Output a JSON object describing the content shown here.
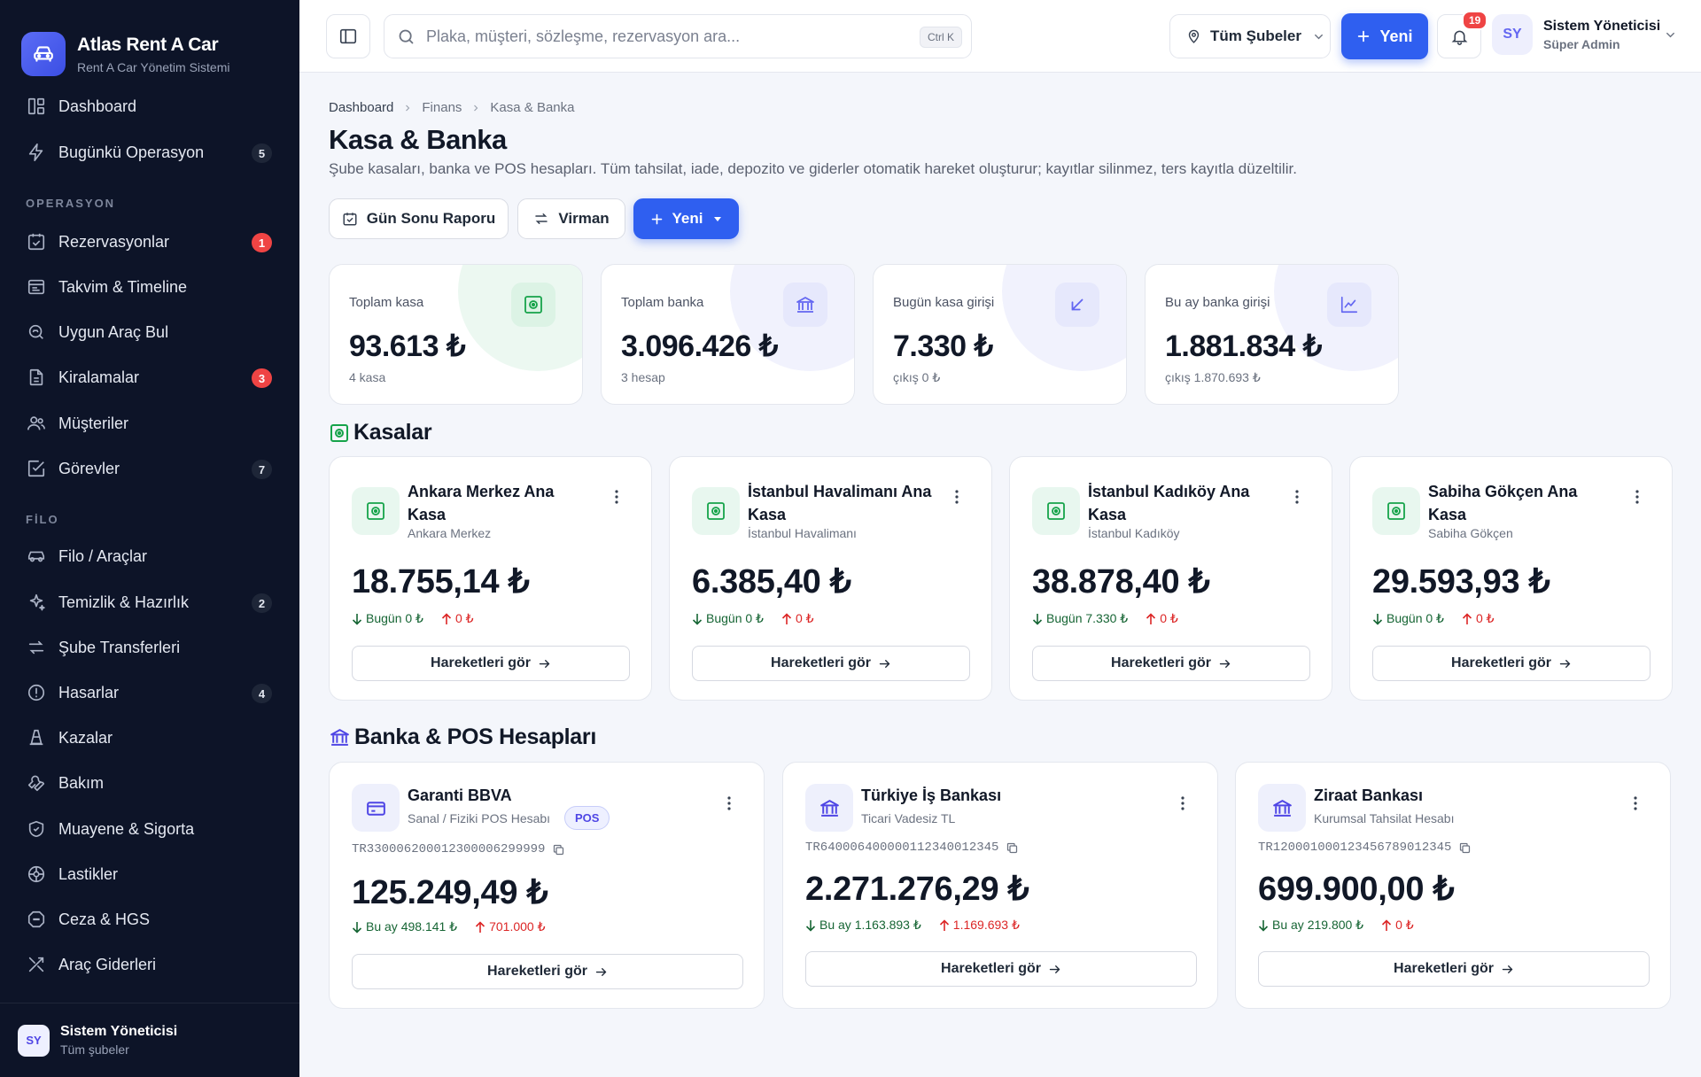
{
  "brand": {
    "name": "Atlas Rent A Car",
    "subtitle": "Rent A Car Yönetim Sistemi"
  },
  "sidebar": {
    "sections": {
      "operasyon": "OPERASYON",
      "filo": "FİLO"
    },
    "items": [
      {
        "label": "Dashboard",
        "icon": "dashboard-icon"
      },
      {
        "label": "Bugünkü Operasyon",
        "icon": "bolt-icon",
        "badge": "5"
      },
      {
        "label": "Rezervasyonlar",
        "icon": "calendar-check-icon",
        "badge": "1",
        "badge_color": "#ef4444"
      },
      {
        "label": "Takvim & Timeline",
        "icon": "timeline-icon"
      },
      {
        "label": "Uygun Araç Bul",
        "icon": "search-car-icon"
      },
      {
        "label": "Kiralamalar",
        "icon": "document-icon",
        "badge": "3",
        "badge_color": "#ef4444"
      },
      {
        "label": "Müşteriler",
        "icon": "users-icon"
      },
      {
        "label": "Görevler",
        "icon": "task-icon",
        "badge": "7"
      },
      {
        "label": "Filo / Araçlar",
        "icon": "car-icon"
      },
      {
        "label": "Temizlik & Hazırlık",
        "icon": "sparkle-icon",
        "badge": "2"
      },
      {
        "label": "Şube Transferleri",
        "icon": "transfer-icon"
      },
      {
        "label": "Hasarlar",
        "icon": "alert-icon",
        "badge": "4"
      },
      {
        "label": "Kazalar",
        "icon": "cone-icon"
      },
      {
        "label": "Bakım",
        "icon": "wrench-icon"
      },
      {
        "label": "Muayene & Sigorta",
        "icon": "shield-icon"
      },
      {
        "label": "Lastikler",
        "icon": "tire-icon"
      },
      {
        "label": "Ceza & HGS",
        "icon": "stop-sign-icon"
      },
      {
        "label": "Araç Giderleri",
        "icon": "tools-icon"
      }
    ],
    "user": {
      "initials": "SY",
      "name": "Sistem Yöneticisi",
      "scope": "Tüm şubeler"
    }
  },
  "topbar": {
    "search_placeholder": "Plaka, müşteri, sözleşme, rezervasyon ara...",
    "shortcut": "Ctrl K",
    "branch": "Tüm Şubeler",
    "new_label": "Yeni",
    "notifications": "19",
    "user": {
      "initials": "SY",
      "name": "Sistem Yöneticisi",
      "role": "Süper Admin"
    }
  },
  "breadcrumb": [
    "Dashboard",
    "Finans",
    "Kasa & Banka"
  ],
  "page": {
    "title": "Kasa & Banka",
    "subtitle": "Şube kasaları, banka ve POS hesapları. Tüm tahsilat, iade, depozito ve giderler otomatik hareket oluşturur; kayıtlar silinmez, ters kayıtla düzeltilir."
  },
  "actions": {
    "day_end": "Gün Sonu Raporu",
    "transfer": "Virman",
    "new": "Yeni"
  },
  "stats": [
    {
      "label": "Toplam kasa",
      "value": "93.613 ₺",
      "sub": "4 kasa",
      "icon": "safe-icon",
      "color": "#16a34a"
    },
    {
      "label": "Toplam banka",
      "value": "3.096.426 ₺",
      "sub": "3 hesap",
      "icon": "bank-icon",
      "color": "#6366f1"
    },
    {
      "label": "Bugün kasa girişi",
      "value": "7.330 ₺",
      "sub": "çıkış 0 ₺",
      "icon": "arrow-down-left-icon",
      "color": "#6366f1"
    },
    {
      "label": "Bu ay banka girişi",
      "value": "1.881.834 ₺",
      "sub": "çıkış 1.870.693 ₺",
      "icon": "chart-line-icon",
      "color": "#6366f1"
    }
  ],
  "kasalar": {
    "title": "Kasalar",
    "items": [
      {
        "name": "Ankara Merkez Ana Kasa",
        "branch": "Ankara Merkez",
        "balance": "18.755,14 ₺",
        "in": "Bugün 0 ₺",
        "out": "0 ₺",
        "button": "Hareketleri gör"
      },
      {
        "name": "İstanbul Havalimanı Ana Kasa",
        "branch": "İstanbul Havalimanı",
        "balance": "6.385,40 ₺",
        "in": "Bugün 0 ₺",
        "out": "0 ₺",
        "button": "Hareketleri gör"
      },
      {
        "name": "İstanbul Kadıköy Ana Kasa",
        "branch": "İstanbul Kadıköy",
        "balance": "38.878,40 ₺",
        "in": "Bugün 7.330 ₺",
        "out": "0 ₺",
        "button": "Hareketleri gör"
      },
      {
        "name": "Sabiha Gökçen Ana Kasa",
        "branch": "Sabiha Gökçen",
        "balance": "29.593,93 ₺",
        "in": "Bugün 0 ₺",
        "out": "0 ₺",
        "button": "Hareketleri gör"
      }
    ]
  },
  "banks": {
    "title": "Banka & POS Hesapları",
    "items": [
      {
        "name": "Garanti BBVA",
        "type": "Sanal / Fiziki POS Hesabı",
        "badge": "POS",
        "iban": "TR330006200012300006299999",
        "balance": "125.249,49 ₺",
        "in": "Bu ay 498.141 ₺",
        "out": "701.000 ₺",
        "button": "Hareketleri gör",
        "icon": "card-icon"
      },
      {
        "name": "Türkiye İş Bankası",
        "type": "Ticari Vadesiz TL",
        "iban": "TR640006400000112340012345",
        "balance": "2.271.276,29 ₺",
        "in": "Bu ay 1.163.893 ₺",
        "out": "1.169.693 ₺",
        "button": "Hareketleri gör",
        "icon": "bank-icon"
      },
      {
        "name": "Ziraat Bankası",
        "type": "Kurumsal Tahsilat Hesabı",
        "iban": "TR120001000123456789012345",
        "balance": "699.900,00 ₺",
        "in": "Bu ay 219.800 ₺",
        "out": "0 ₺",
        "button": "Hareketleri gör",
        "icon": "bank-icon"
      }
    ]
  }
}
